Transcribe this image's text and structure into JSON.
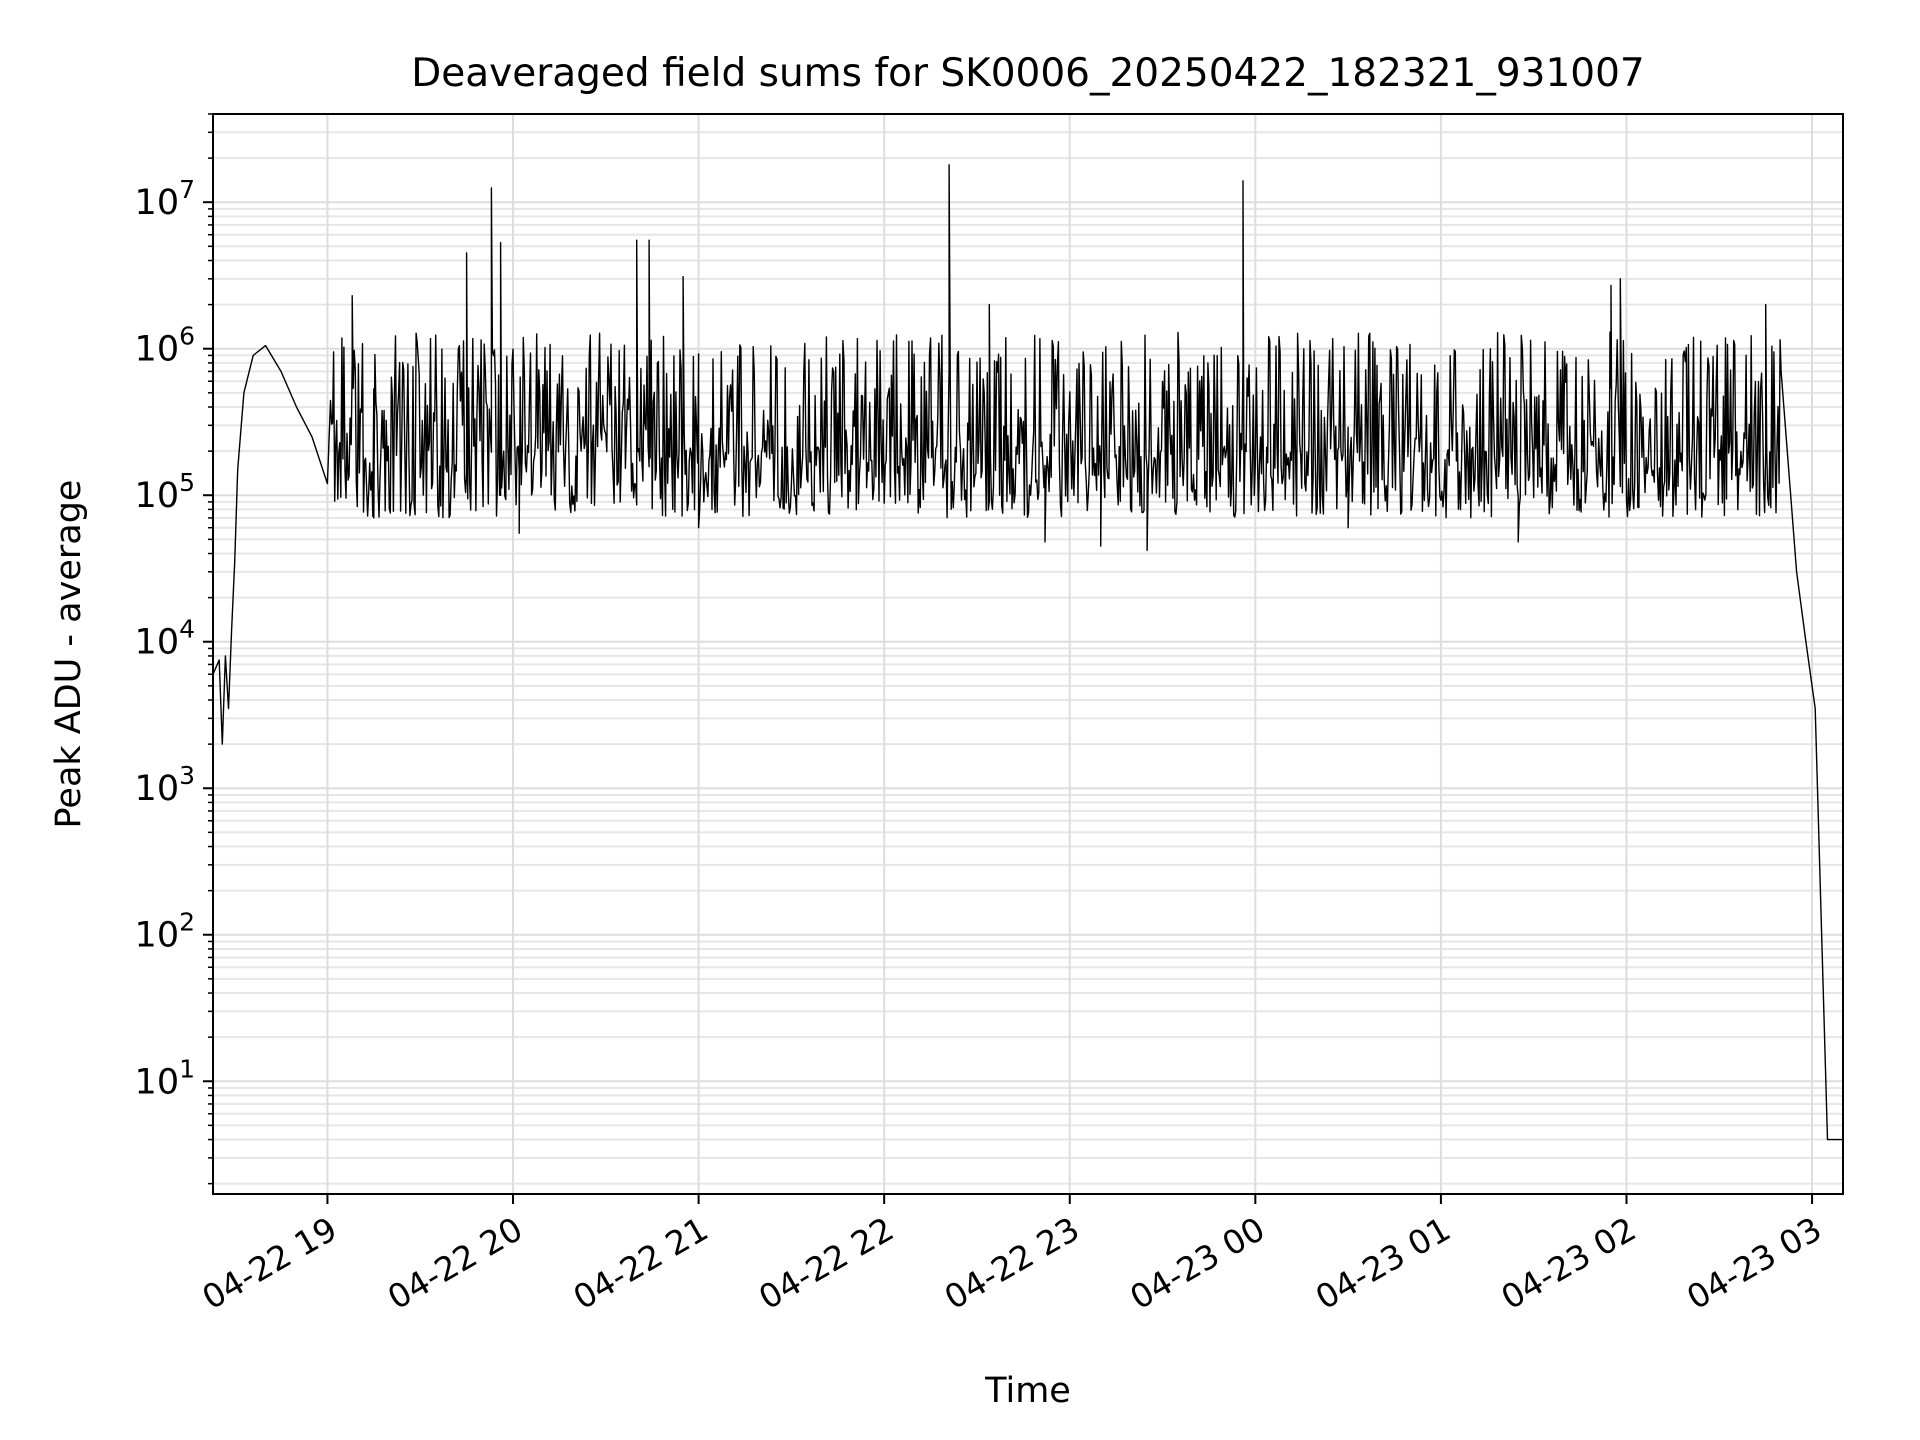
{
  "chart_data": {
    "type": "line",
    "title": "Deaveraged field sums for SK0006_20250422_182321_931007",
    "xlabel": "Time",
    "ylabel": "Peak ADU - average",
    "yscale": "log",
    "ylim": [
      1.7,
      40000000
    ],
    "xlim": [
      "2025-04-22 18:23",
      "2025-04-23 03:10"
    ],
    "grid": true,
    "x_ticks": [
      {
        "time": "2025-04-22 19:00",
        "label": "04-22 19"
      },
      {
        "time": "2025-04-22 20:00",
        "label": "04-22 20"
      },
      {
        "time": "2025-04-22 21:00",
        "label": "04-22 21"
      },
      {
        "time": "2025-04-22 22:00",
        "label": "04-22 22"
      },
      {
        "time": "2025-04-22 23:00",
        "label": "04-22 23"
      },
      {
        "time": "2025-04-23 00:00",
        "label": "04-23 00"
      },
      {
        "time": "2025-04-23 01:00",
        "label": "04-23 01"
      },
      {
        "time": "2025-04-23 02:00",
        "label": "04-23 02"
      },
      {
        "time": "2025-04-23 03:00",
        "label": "04-23 03"
      }
    ],
    "y_ticks": [
      {
        "value": 10,
        "base": "10",
        "exp": "1"
      },
      {
        "value": 100,
        "base": "10",
        "exp": "2"
      },
      {
        "value": 1000,
        "base": "10",
        "exp": "3"
      },
      {
        "value": 10000,
        "base": "10",
        "exp": "4"
      },
      {
        "value": 100000,
        "base": "10",
        "exp": "5"
      },
      {
        "value": 1000000,
        "base": "10",
        "exp": "6"
      },
      {
        "value": 10000000,
        "base": "10",
        "exp": "7"
      }
    ],
    "series": [
      {
        "color": "#000000",
        "points": [
          [
            "2025-04-22 18:23",
            6000
          ],
          [
            "2025-04-22 18:25",
            7500
          ],
          [
            "2025-04-22 18:26",
            2000
          ],
          [
            "2025-04-22 18:27",
            8000
          ],
          [
            "2025-04-22 18:28",
            3500
          ],
          [
            "2025-04-22 18:29",
            12000
          ],
          [
            "2025-04-22 18:30",
            35000
          ],
          [
            "2025-04-22 18:31",
            150000
          ],
          [
            "2025-04-22 18:33",
            500000
          ],
          [
            "2025-04-22 18:36",
            900000
          ],
          [
            "2025-04-22 18:40",
            1050000
          ],
          [
            "2025-04-22 18:45",
            700000
          ],
          [
            "2025-04-22 18:50",
            400000
          ],
          [
            "2025-04-22 18:55",
            250000
          ],
          [
            "2025-04-22 19:00",
            120000
          ],
          [
            "2025-04-22 19:08",
            2300000
          ],
          [
            "2025-04-22 19:15",
            70000
          ],
          [
            "2025-04-22 19:45",
            4500000
          ],
          [
            "2025-04-22 19:53",
            12500000
          ],
          [
            "2025-04-22 19:56",
            5300000
          ],
          [
            "2025-04-22 20:02",
            55000
          ],
          [
            "2025-04-22 20:40",
            5500000
          ],
          [
            "2025-04-22 20:44",
            5500000
          ],
          [
            "2025-04-22 20:55",
            3100000
          ],
          [
            "2025-04-22 21:00",
            60000
          ],
          [
            "2025-04-22 22:21",
            18000000
          ],
          [
            "2025-04-22 22:34",
            2000000
          ],
          [
            "2025-04-22 22:52",
            48000
          ],
          [
            "2025-04-22 23:10",
            45000
          ],
          [
            "2025-04-22 23:25",
            42000
          ],
          [
            "2025-04-22 23:56",
            14000000
          ],
          [
            "2025-04-23 00:30",
            60000
          ],
          [
            "2025-04-23 01:25",
            48000
          ],
          [
            "2025-04-23 01:55",
            2700000
          ],
          [
            "2025-04-23 01:58",
            3000000
          ],
          [
            "2025-04-23 02:45",
            2000000
          ],
          [
            "2025-04-23 02:50",
            700000
          ],
          [
            "2025-04-23 02:55",
            30000
          ],
          [
            "2025-04-23 02:58",
            10000
          ],
          [
            "2025-04-23 03:01",
            3500
          ],
          [
            "2025-04-23 03:05",
            4
          ],
          [
            "2025-04-23 03:10",
            4
          ]
        ],
        "band_low": 70000,
        "band_high": 1300000
      }
    ]
  }
}
